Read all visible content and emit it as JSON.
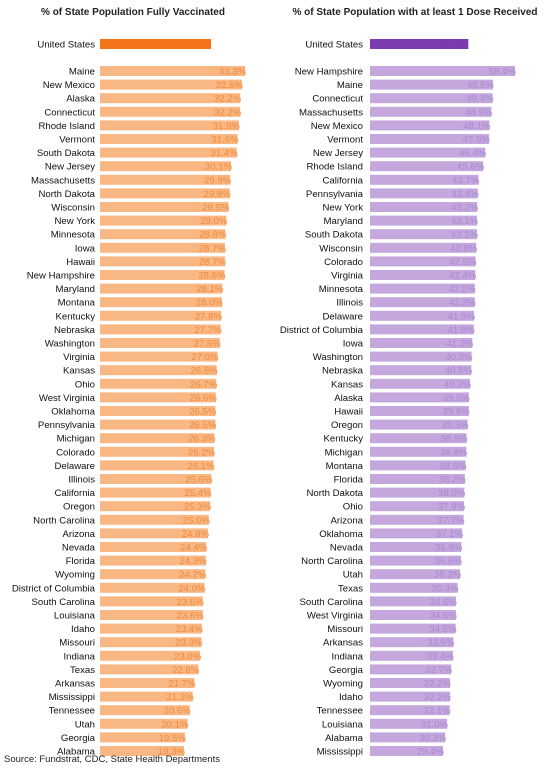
{
  "source": "Source: Fundstrat, CDC, State Health Departments",
  "colors": {
    "left_bar": "#f9b784",
    "left_highlight": "#f5731b",
    "left_text": "#f08a3a",
    "right_bar": "#c4a7dc",
    "right_highlight": "#7d3bb0",
    "right_text": "#a98ad0"
  },
  "chart_data": [
    {
      "type": "bar",
      "orientation": "horizontal",
      "title": "% of State Population Fully Vaccinated",
      "highlight": {
        "name": "United States",
        "value": 25.5,
        "label": "25.5%"
      },
      "categories": [
        "Maine",
        "New Mexico",
        "Alaska",
        "Connecticut",
        "Rhode Island",
        "Vermont",
        "South Dakota",
        "New Jersey",
        "Massachusetts",
        "North Dakota",
        "Wisconsin",
        "New York",
        "Minnesota",
        "Iowa",
        "Hawaii",
        "New Hampshire",
        "Maryland",
        "Montana",
        "Kentucky",
        "Nebraska",
        "Washington",
        "Virginia",
        "Kansas",
        "Ohio",
        "West Virginia",
        "Oklahoma",
        "Pennsylvania",
        "Michigan",
        "Colorado",
        "Delaware",
        "Illinois",
        "California",
        "Oregon",
        "North Carolina",
        "Arizona",
        "Nevada",
        "Florida",
        "Wyoming",
        "District of Columbia",
        "South Carolina",
        "Louisiana",
        "Idaho",
        "Missouri",
        "Indiana",
        "Texas",
        "Arkansas",
        "Mississippi",
        "Tennessee",
        "Utah",
        "Georgia",
        "Alabama"
      ],
      "values": [
        33.3,
        32.6,
        32.2,
        32.2,
        31.9,
        31.6,
        31.4,
        30.1,
        29.9,
        29.8,
        29.5,
        29.0,
        28.8,
        28.7,
        28.7,
        28.6,
        28.1,
        28.0,
        27.8,
        27.7,
        27.5,
        27.0,
        26.8,
        26.7,
        26.6,
        26.5,
        26.5,
        26.3,
        26.2,
        26.1,
        25.6,
        25.4,
        25.3,
        25.0,
        24.8,
        24.4,
        24.3,
        24.2,
        24.0,
        23.6,
        23.6,
        23.4,
        23.3,
        23.0,
        22.6,
        21.7,
        21.3,
        20.6,
        20.1,
        19.5,
        19.3
      ],
      "value_labels": [
        "33.3%",
        "32.6%",
        "32.2%",
        "32.2%",
        "31.9%",
        "31.6%",
        "31.4%",
        "30.1%",
        "29.9%",
        "29.8%",
        "29.5%",
        "29.0%",
        "28.8%",
        "28.7%",
        "28.7%",
        "28.6%",
        "28.1%",
        "28.0%",
        "27.8%",
        "27.7%",
        "27.5%",
        "27.0%",
        "26.8%",
        "26.7%",
        "26.6%",
        "26.5%",
        "26.5%",
        "26.3%",
        "26.2%",
        "26.1%",
        "25.6%",
        "25.4%",
        "25.3%",
        "25.0%",
        "24.8%",
        "24.4%",
        "24.3%",
        "24.2%",
        "24.0%",
        "23.6%",
        "23.6%",
        "23.4%",
        "23.3%",
        "23.0%",
        "22.6%",
        "21.7%",
        "21.3%",
        "20.6%",
        "20.1%",
        "19.5%",
        "19.3%"
      ]
    },
    {
      "type": "bar",
      "orientation": "horizontal",
      "title": "% of State Population with at least 1 Dose Received",
      "highlight": {
        "name": "United States",
        "value": 39.6,
        "label": "39.6%"
      },
      "categories": [
        "New Hampshire",
        "Maine",
        "Connecticut",
        "Massachusetts",
        "New Mexico",
        "Vermont",
        "New Jersey",
        "Rhode Island",
        "California",
        "Pennsylvania",
        "New York",
        "Maryland",
        "South Dakota",
        "Wisconsin",
        "Colorado",
        "Virginia",
        "Minnesota",
        "Illinois",
        "Delaware",
        "District of Columbia",
        "Iowa",
        "Washington",
        "Nebraska",
        "Kansas",
        "Alaska",
        "Hawaii",
        "Oregon",
        "Kentucky",
        "Michigan",
        "Montana",
        "Florida",
        "North Dakota",
        "Ohio",
        "Arizona",
        "Oklahoma",
        "Nevada",
        "North Carolina",
        "Utah",
        "Texas",
        "South Carolina",
        "West Virginia",
        "Missouri",
        "Arkansas",
        "Indiana",
        "Georgia",
        "Wyoming",
        "Idaho",
        "Tennessee",
        "Louisiana",
        "Alabama",
        "Mississippi"
      ],
      "values": [
        58.4,
        49.5,
        49.4,
        48.9,
        48.1,
        47.9,
        46.4,
        45.6,
        43.7,
        43.4,
        43.2,
        43.1,
        43.1,
        42.8,
        42.5,
        42.4,
        42.2,
        42.2,
        41.9,
        41.8,
        41.2,
        40.9,
        40.8,
        40.3,
        39.8,
        39.8,
        39.3,
        38.9,
        38.8,
        38.5,
        38.2,
        38.0,
        37.9,
        37.7,
        37.1,
        36.8,
        36.6,
        36.3,
        35.3,
        34.6,
        34.6,
        34.5,
        33.6,
        33.4,
        32.7,
        32.2,
        32.2,
        32.1,
        31.0,
        30.3,
        29.4
      ],
      "value_labels": [
        "58.4%",
        "49.5%",
        "49.4%",
        "48.9%",
        "48.1%",
        "47.9%",
        "46.4%",
        "45.6%",
        "43.7%",
        "43.4%",
        "43.2%",
        "43.1%",
        "43.1%",
        "42.8%",
        "42.5%",
        "42.4%",
        "42.2%",
        "42.2%",
        "41.9%",
        "41.8%",
        "41.2%",
        "40.9%",
        "40.8%",
        "40.3%",
        "39.8%",
        "39.8%",
        "39.3%",
        "38.9%",
        "38.8%",
        "38.5%",
        "38.2%",
        "38.0%",
        "37.9%",
        "37.7%",
        "37.1%",
        "36.8%",
        "36.6%",
        "36.3%",
        "35.3%",
        "34.6%",
        "34.6%",
        "34.5%",
        "33.6%",
        "33.4%",
        "32.7%",
        "32.2%",
        "32.2%",
        "32.1%",
        "31.0%",
        "30.3%",
        "29.4%"
      ]
    }
  ]
}
